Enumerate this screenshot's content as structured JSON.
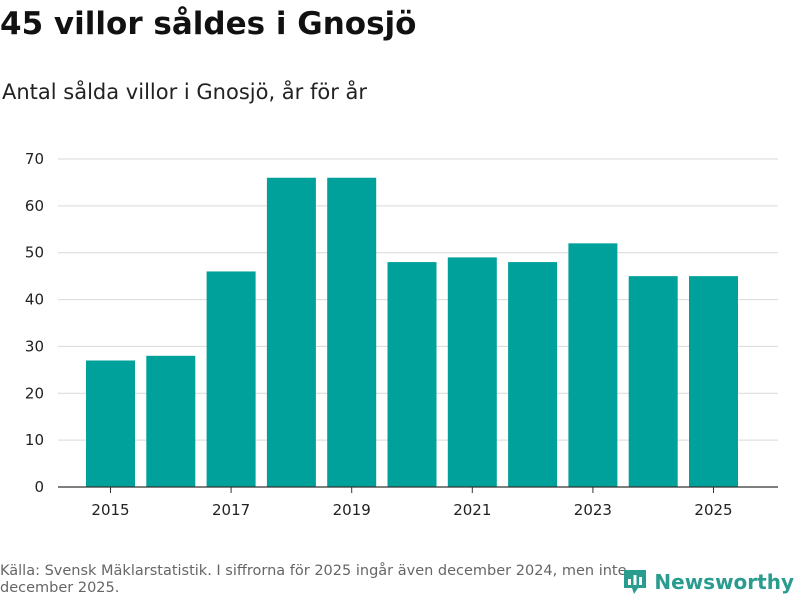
{
  "header": {
    "title": "45 villor såldes i Gnosjö",
    "subtitle": "Antal sålda villor i Gnosjö, år för år"
  },
  "footer": {
    "source": "Källa: Svensk Mäklarstatistik. I siffrorna för 2025 ingår även december 2024, men inte december 2025.",
    "brand": "Newsworthy",
    "brand_icon": "newsworthy-logo-icon",
    "brand_color": "#2a9b8f"
  },
  "chart_data": {
    "type": "bar",
    "title": "45 villor såldes i Gnosjö",
    "subtitle": "Antal sålda villor i Gnosjö, år för år",
    "categories": [
      "2015",
      "2016",
      "2017",
      "2018",
      "2019",
      "2020",
      "2021",
      "2022",
      "2023",
      "2024",
      "2025"
    ],
    "values": [
      27,
      28,
      46,
      66,
      66,
      48,
      49,
      48,
      52,
      45,
      45
    ],
    "x_tick_labels": [
      "2015",
      "2017",
      "2019",
      "2021",
      "2023",
      "2025"
    ],
    "y_ticks": [
      0,
      10,
      20,
      30,
      40,
      50,
      60,
      70
    ],
    "ylim": [
      0,
      70
    ],
    "xlabel": "",
    "ylabel": "",
    "grid": true,
    "bar_color": "#00a19a"
  }
}
